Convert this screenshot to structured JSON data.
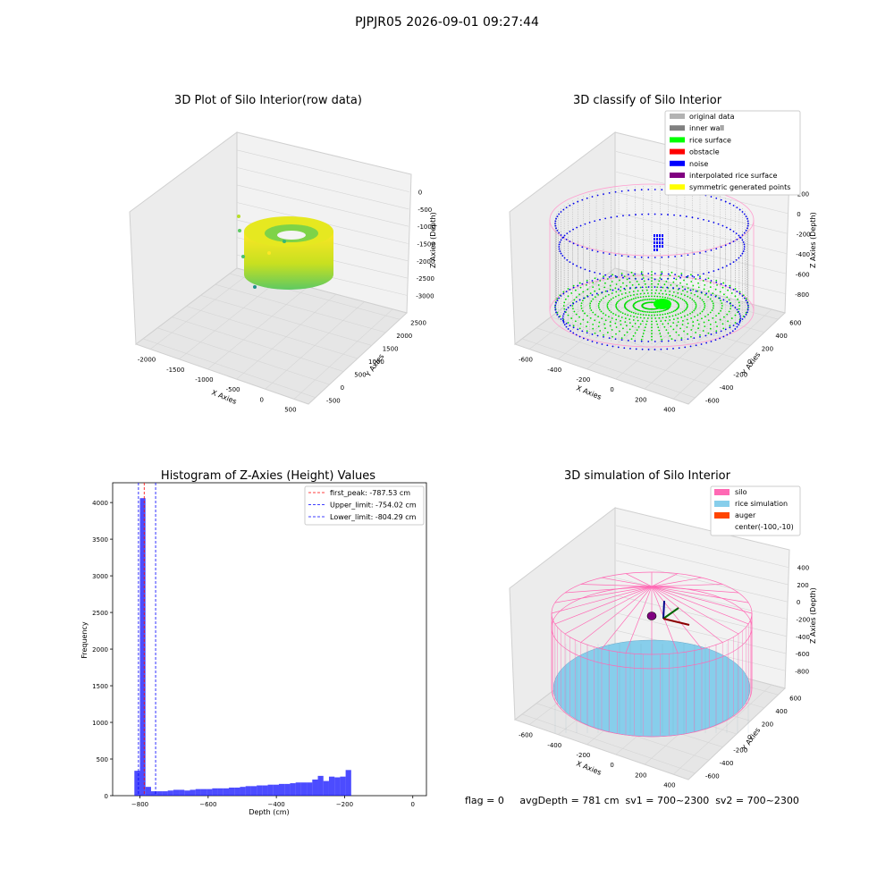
{
  "suptitle": "PJPJR05 2026-09-01 09:27:44",
  "panels": {
    "raw": {
      "title": "3D Plot of Silo Interior(row data)",
      "xlabel": "X Axies",
      "ylabel": "Y Axies",
      "zlabel": "Z Axies (Depth)",
      "xticks": [
        "-2000",
        "-1500",
        "-1000",
        "-500",
        "0",
        "500"
      ],
      "yticks": [
        "-500",
        "0",
        "500",
        "1000",
        "1500",
        "2000",
        "2500"
      ],
      "zticks": [
        "0",
        "-500",
        "-1000",
        "-1500",
        "-2000",
        "-2500",
        "-3000"
      ],
      "colormap": [
        "#440154",
        "#3b528b",
        "#21918c",
        "#5ec962",
        "#fde725"
      ]
    },
    "classify": {
      "title": "3D classify of Silo Interior",
      "xlabel": "X Axies",
      "ylabel": "Y Axies",
      "zlabel": "Z Axies (Depth)",
      "xticks": [
        "-600",
        "-400",
        "-200",
        "0",
        "200",
        "400"
      ],
      "yticks": [
        "-600",
        "-400",
        "-200",
        "0",
        "200",
        "400",
        "600"
      ],
      "zticks": [
        "200",
        "0",
        "-200",
        "-400",
        "-600",
        "-800"
      ],
      "legend": [
        {
          "label": "original data",
          "color": "#b3b3b3"
        },
        {
          "label": "inner wall",
          "color": "#808080"
        },
        {
          "label": "rice surface",
          "color": "#00ff00"
        },
        {
          "label": "obstacle",
          "color": "#ff0000"
        },
        {
          "label": "noise",
          "color": "#0000ff"
        },
        {
          "label": "interpolated rice surface",
          "color": "#800080"
        },
        {
          "label": "symmetric generated points",
          "color": "#ffff00"
        }
      ]
    },
    "simulation": {
      "title": "3D simulation of Silo Interior",
      "xlabel": "X Axies",
      "ylabel": "Y Axies",
      "zlabel": "Z Axies (Depth)",
      "xticks": [
        "-600",
        "-400",
        "-200",
        "0",
        "200",
        "400"
      ],
      "yticks": [
        "-600",
        "-400",
        "-200",
        "0",
        "200",
        "400",
        "600"
      ],
      "zticks": [
        "400",
        "200",
        "0",
        "-200",
        "-400",
        "-600",
        "-800"
      ],
      "legend": [
        {
          "label": "silo",
          "color": "#ff69b4"
        },
        {
          "label": "rice simulation",
          "color": "#87ceeb"
        },
        {
          "label": "auger",
          "color": "#ff4500"
        },
        {
          "label": "center(-100,-10)",
          "color": null
        }
      ]
    }
  },
  "chart_data": {
    "type": "bar",
    "title": "Histogram of Z-Axies (Height) Values",
    "xlabel": "Depth (cm)",
    "ylabel": "Frequency",
    "xlim": [
      -880,
      40
    ],
    "ylim": [
      0,
      4270
    ],
    "xticks": [
      -800,
      -600,
      -400,
      -200,
      0
    ],
    "xtick_labels": [
      "−800",
      "−600",
      "−400",
      "−200",
      "0"
    ],
    "yticks": [
      0,
      500,
      1000,
      1500,
      2000,
      2500,
      3000,
      3500,
      4000
    ],
    "bar_color": "#0000ff",
    "bin_width": 16.3,
    "bin_start": -816.3,
    "values": [
      340,
      4060,
      120,
      60,
      60,
      60,
      70,
      80,
      80,
      70,
      80,
      90,
      90,
      90,
      100,
      100,
      100,
      110,
      110,
      120,
      130,
      130,
      140,
      140,
      150,
      150,
      160,
      160,
      170,
      180,
      180,
      180,
      220,
      270,
      200,
      260,
      250,
      260,
      350
    ],
    "lines": [
      {
        "label": "first_peak: -787.53 cm",
        "x": -787.53,
        "color": "#ff0000"
      },
      {
        "label": "Upper_limit: -754.02 cm",
        "x": -754.02,
        "color": "#0000ff"
      },
      {
        "label": "Lower_limit: -804.29 cm",
        "x": -804.29,
        "color": "#0000ff"
      }
    ],
    "legend_position": "top-right"
  },
  "footer": "flag = 0     avgDepth = 781 cm  sv1 = 700~2300  sv2 = 700~2300"
}
